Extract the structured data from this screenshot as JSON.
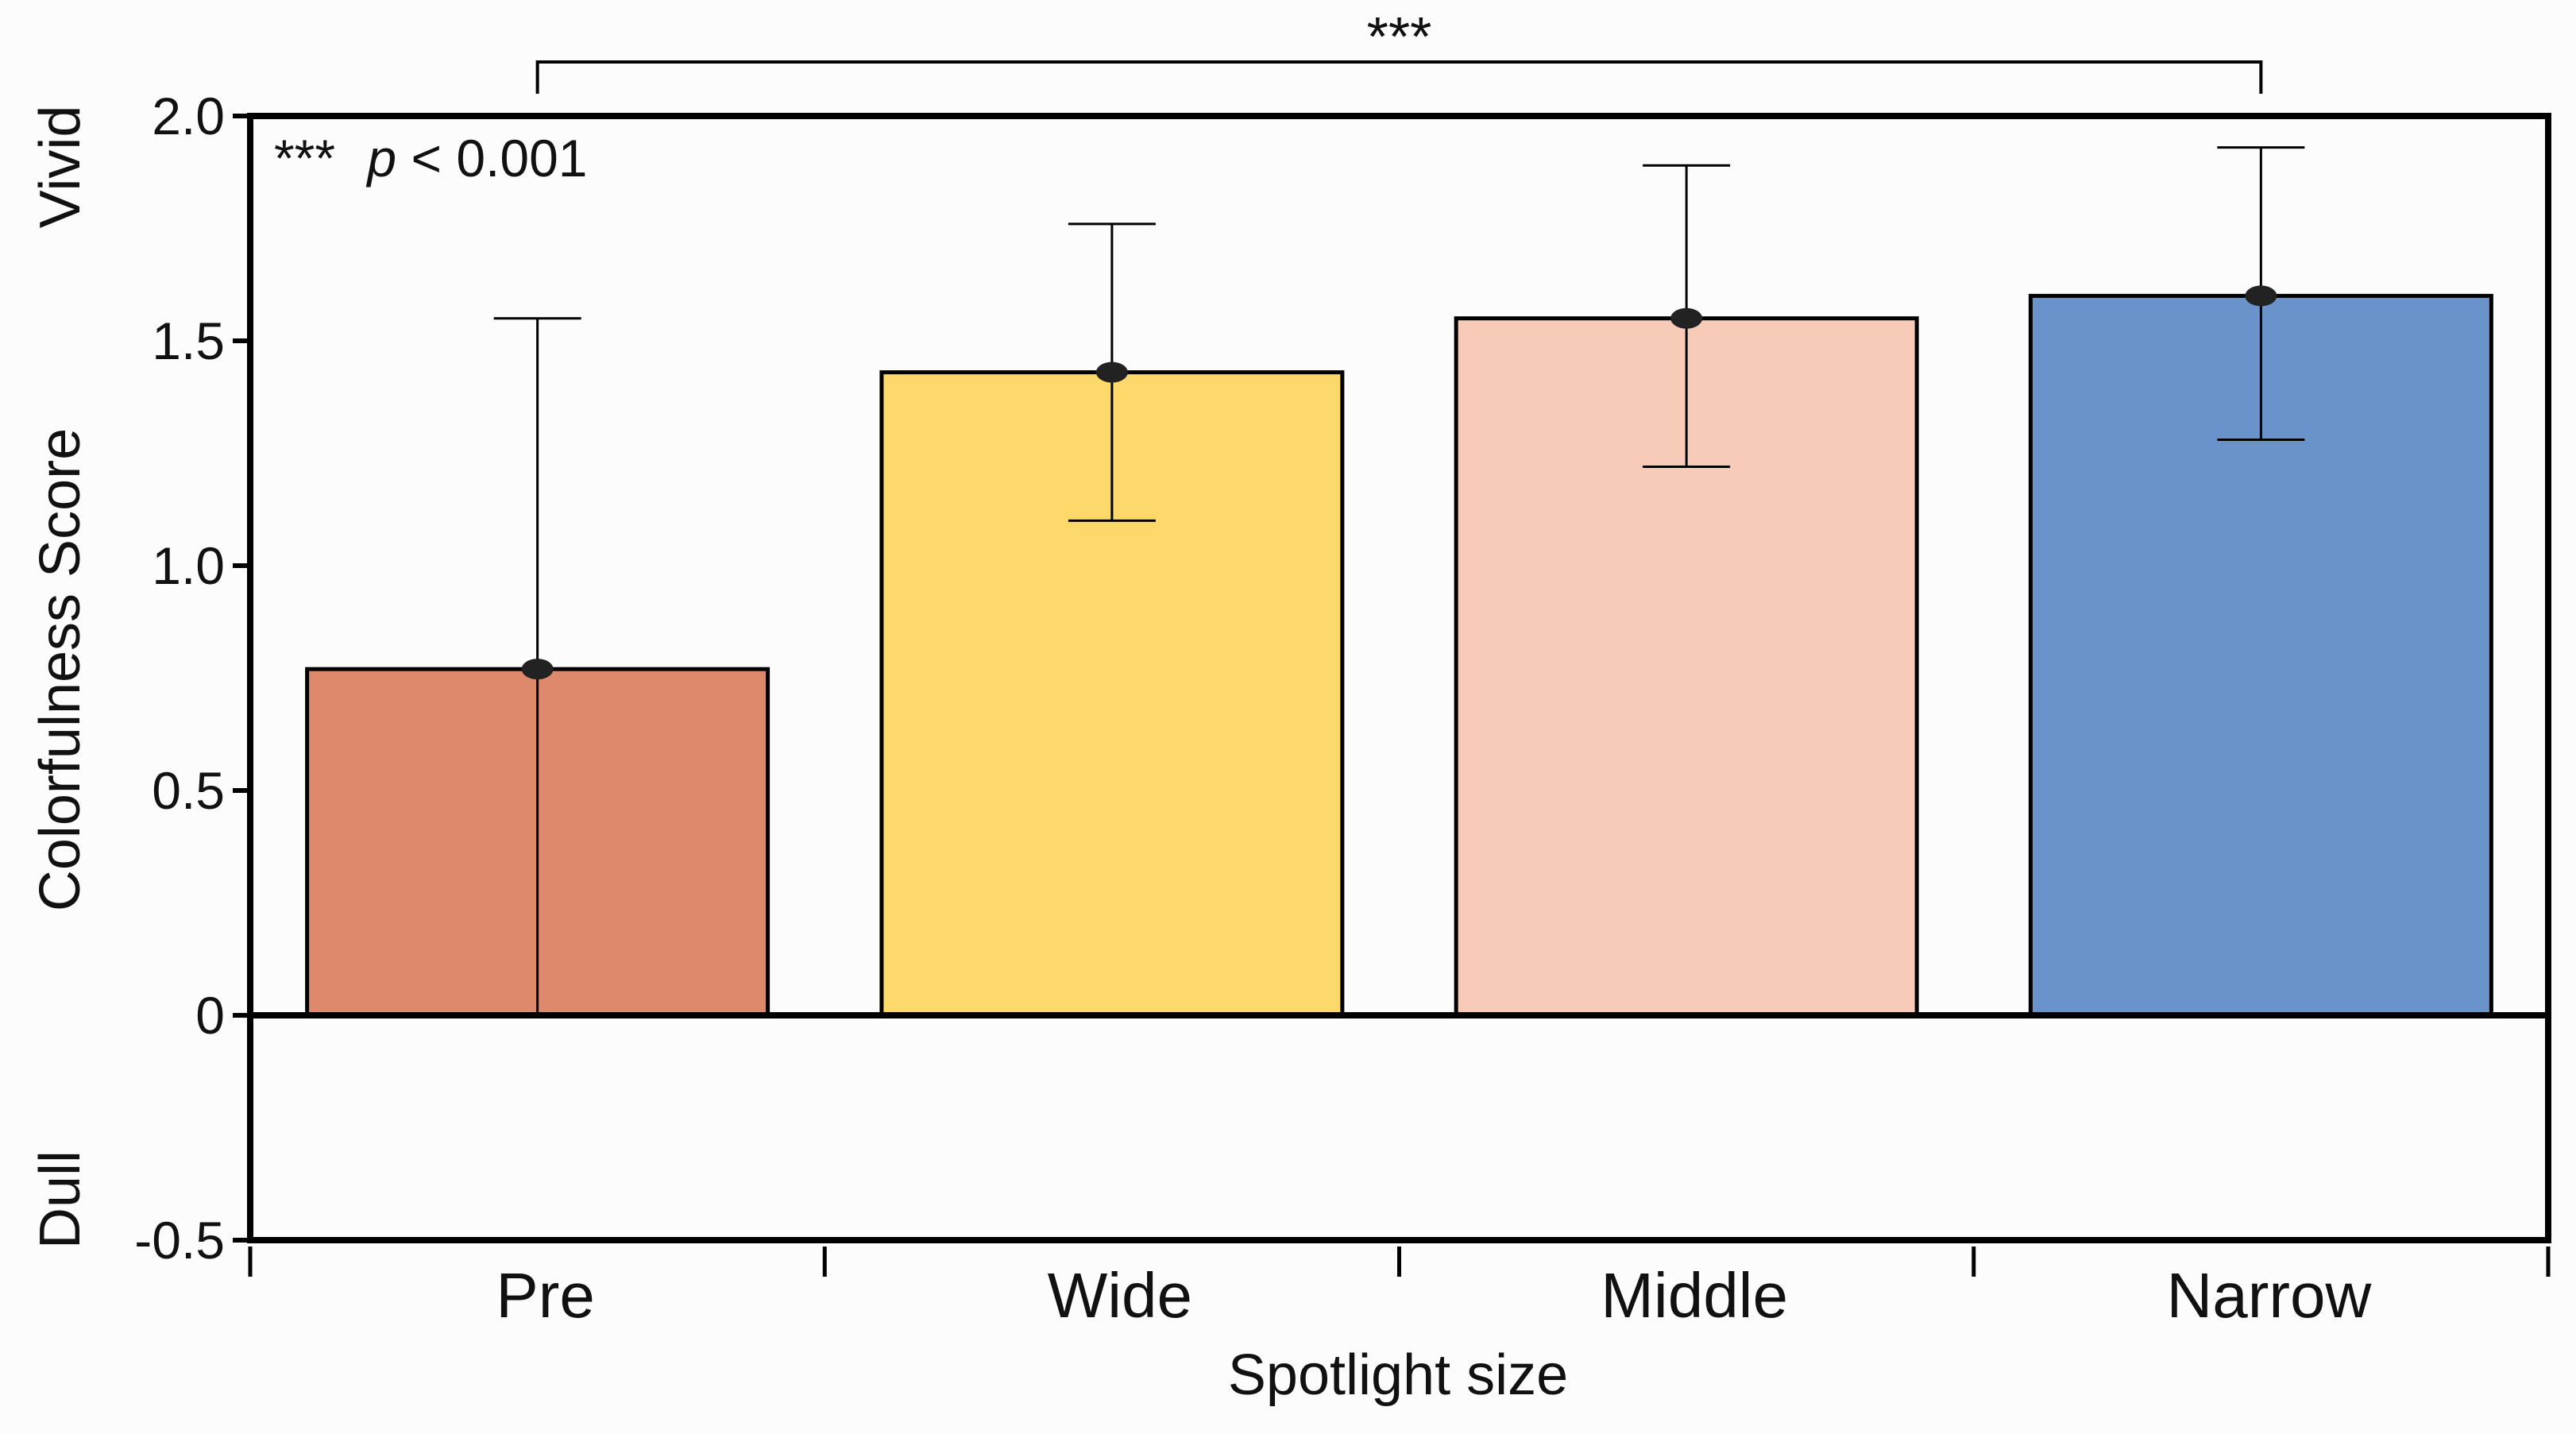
{
  "chart_data": {
    "type": "bar",
    "title": "",
    "xlabel": "Spotlight size",
    "ylabel": "Colorfulness Score",
    "ylim": [
      -0.5,
      2.0
    ],
    "yticks": [
      "2.0",
      "1.5",
      "1.0",
      "0.5",
      "0",
      "-0.5"
    ],
    "ytick_values": [
      2.0,
      1.5,
      1.0,
      0.5,
      0,
      -0.5
    ],
    "top_anchor_label": "Vivid",
    "bottom_anchor_label": "Dull",
    "categories": [
      "Pre",
      "Wide",
      "Middle",
      "Narrow"
    ],
    "values": [
      0.77,
      1.43,
      1.55,
      1.6
    ],
    "error_upper": [
      1.55,
      1.76,
      1.89,
      1.93
    ],
    "error_lower": [
      0.0,
      1.1,
      1.22,
      1.28
    ],
    "bar_colors": [
      "#de886c",
      "#fdd86b",
      "#f8cbb9",
      "#6b93cb"
    ],
    "annotation": {
      "stars": "***",
      "p_label": "p",
      "p_rest": " < 0.001"
    },
    "significance": {
      "from_category": "Pre",
      "to_category": "Narrow",
      "label": "***"
    }
  }
}
